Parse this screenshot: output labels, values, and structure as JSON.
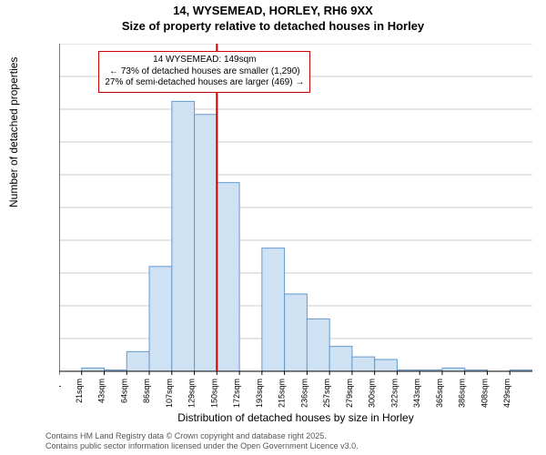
{
  "title_line1": "14, WYSEMEAD, HORLEY, RH6 9XX",
  "title_line2": "Size of property relative to detached houses in Horley",
  "ylabel": "Number of detached properties",
  "xlabel": "Distribution of detached houses by size in Horley",
  "chart": {
    "type": "histogram",
    "background_color": "#ffffff",
    "grid_color": "#cccccc",
    "axis_color": "#000000",
    "bar_fill": "#cfe2f3",
    "bar_stroke": "#6699cc",
    "bar_stroke_width": 1,
    "marker_line_color": "#cc0000",
    "marker_line_width": 2,
    "ylim": [
      0,
      500
    ],
    "ytick_step": 50,
    "yticks": [
      0,
      50,
      100,
      150,
      200,
      250,
      300,
      350,
      400,
      450,
      500
    ],
    "x_tick_labels": [
      "0sqm",
      "21sqm",
      "43sqm",
      "64sqm",
      "86sqm",
      "107sqm",
      "129sqm",
      "150sqm",
      "172sqm",
      "193sqm",
      "215sqm",
      "236sqm",
      "257sqm",
      "279sqm",
      "300sqm",
      "322sqm",
      "343sqm",
      "365sqm",
      "386sqm",
      "408sqm",
      "429sqm"
    ],
    "x_tick_interval": 21,
    "values": [
      0,
      5,
      2,
      30,
      160,
      412,
      392,
      288,
      0,
      188,
      118,
      80,
      38,
      22,
      18,
      2,
      2,
      5,
      2,
      0,
      2
    ],
    "marker_bin_index": 7,
    "tick_font_size": 9,
    "axis_label_font_size": 12,
    "title_font_size": 13
  },
  "annotation": {
    "line1": "14 WYSEMEAD: 149sqm",
    "line2": "← 73% of detached houses are smaller (1,290)",
    "line3": "27% of semi-detached houses are larger (469) →",
    "border_color": "#cc0000",
    "background_color": "#ffffff",
    "font_size": 10
  },
  "footer": {
    "line1": "Contains HM Land Registry data © Crown copyright and database right 2025.",
    "line2": "Contains public sector information licensed under the Open Government Licence v3.0."
  }
}
